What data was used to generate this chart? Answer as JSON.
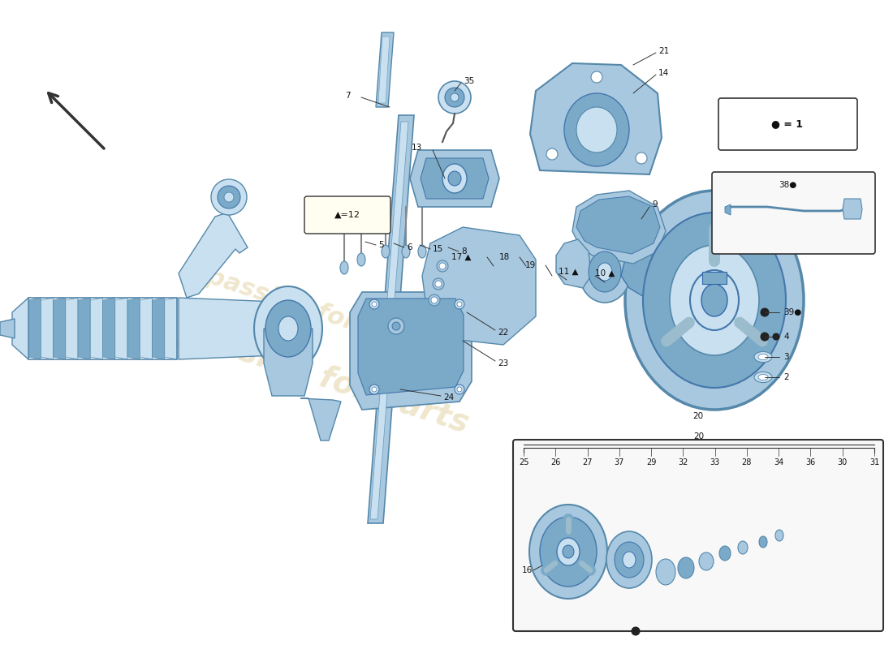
{
  "bg": "#ffffff",
  "pc": "#a8c8e0",
  "pcd": "#7aaac8",
  "pcl": "#c8e0f0",
  "lc": "#333333",
  "wm_color": "#c8a84b",
  "wm_alpha": 0.28
}
